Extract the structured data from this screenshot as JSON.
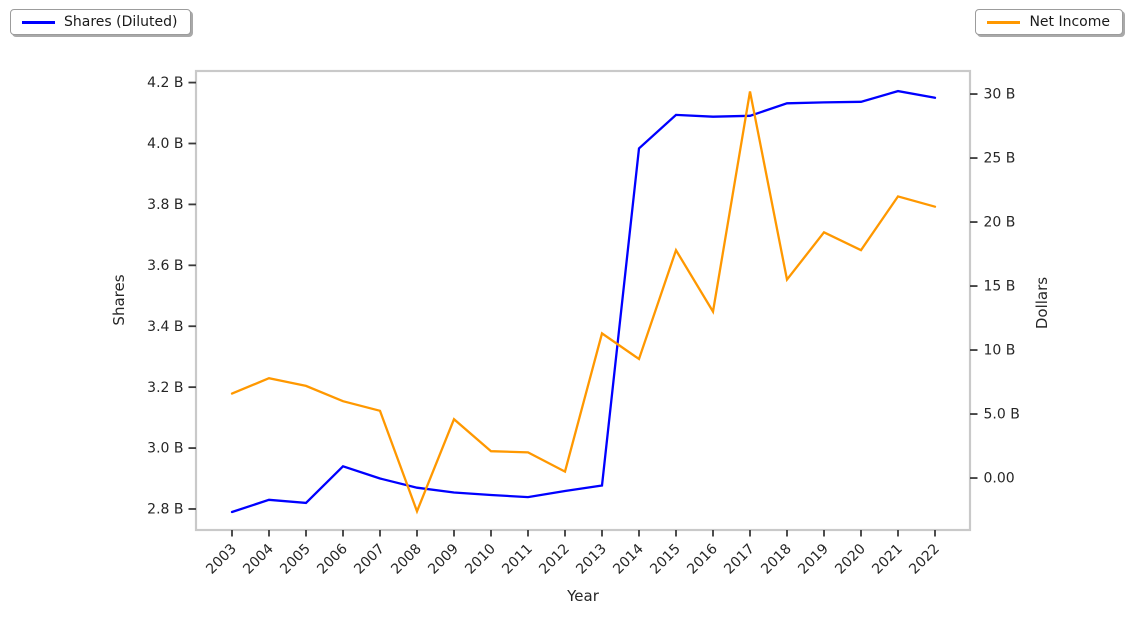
{
  "figure": {
    "background": "#ffffff",
    "text_color": "#262626",
    "spine_color": "#c9c9c9"
  },
  "legend_left": {
    "label": "Shares (Diluted)",
    "color": "#0000ff"
  },
  "legend_right": {
    "label": "Net Income",
    "color": "#ff9800"
  },
  "chart_data": {
    "type": "line",
    "title": "",
    "xlabel": "Year",
    "x": [
      "2003",
      "2004",
      "2005",
      "2006",
      "2007",
      "2008",
      "2009",
      "2010",
      "2011",
      "2012",
      "2013",
      "2014",
      "2015",
      "2016",
      "2017",
      "2018",
      "2019",
      "2020",
      "2021",
      "2022"
    ],
    "series": [
      {
        "name": "Shares (Diluted)",
        "axis": "left",
        "color": "#0000ff",
        "values": [
          2.79,
          2.83,
          2.82,
          2.94,
          2.9,
          2.87,
          2.854,
          2.846,
          2.839,
          2.859,
          2.877,
          3.984,
          4.094,
          4.088,
          4.091,
          4.132,
          4.135,
          4.137,
          4.172,
          4.15
        ]
      },
      {
        "name": "Net Income",
        "axis": "right",
        "color": "#ff9800",
        "values": [
          6.6,
          7.8,
          7.2,
          6.0,
          5.25,
          -2.6,
          4.6,
          2.1,
          2.0,
          0.5,
          11.3,
          9.3,
          17.8,
          13.0,
          30.2,
          15.5,
          19.2,
          17.8,
          22.0,
          21.2
        ]
      }
    ],
    "left_axis": {
      "label": "Shares",
      "tick_labels": [
        "4.2 B",
        "4.0 B",
        "3.8 B",
        "3.6 B",
        "3.4 B",
        "3.2 B",
        "3.0 B",
        "2.8 B"
      ],
      "tick_values": [
        4.2,
        4.0,
        3.8,
        3.6,
        3.4,
        3.2,
        3.0,
        2.8
      ],
      "ylim": [
        2.731,
        4.238
      ]
    },
    "right_axis": {
      "label": "Dollars",
      "tick_labels": [
        "30 B",
        "25 B",
        "20 B",
        "15 B",
        "10 B",
        "5.0 B",
        "0.00"
      ],
      "tick_values": [
        30,
        25,
        20,
        15,
        10,
        5,
        0
      ],
      "ylim": [
        -4.06,
        31.8
      ]
    },
    "grid": false,
    "legend_position": "outside top-left and outside top-right"
  }
}
